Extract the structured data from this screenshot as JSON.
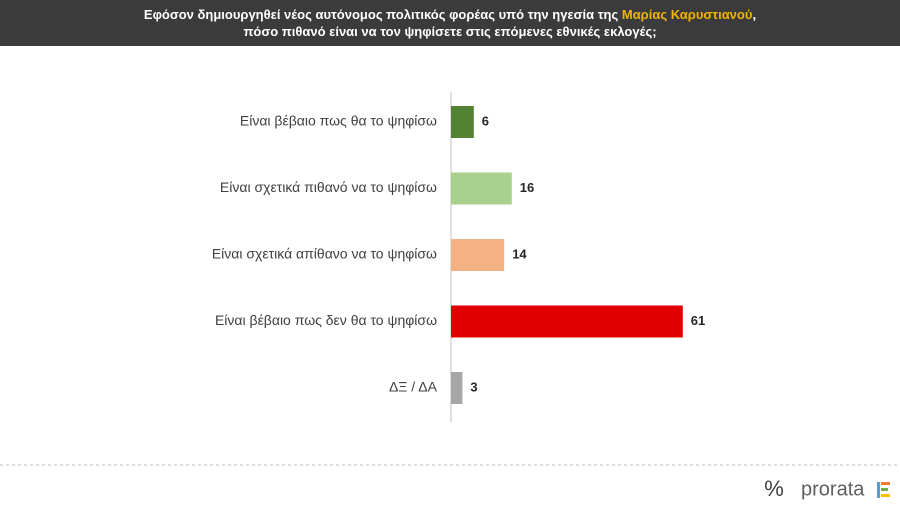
{
  "chart_data": {
    "type": "bar",
    "orientation": "horizontal",
    "title": [
      "Εφόσον δημιουργηθεί νέος αυτόνομος πολιτικός φορέας υπό την ηγεσία της",
      "Μαρίας Καρυστιανού",
      ",",
      "πόσο πιθανό είναι να τον ψηφίσετε στις επόμενες εθνικές εκλογές;"
    ],
    "title_highlight_color": "#f2b400",
    "categories": [
      "Είναι βέβαιο πως θα το ψηφίσω",
      "Είναι σχετικά πιθανό να το ψηφίσω",
      "Είναι σχετικά απίθανο να το ψηφίσω",
      "Είναι βέβαιο πως δεν θα το ψηφίσω",
      "ΔΞ / ΔΑ"
    ],
    "values": [
      6,
      16,
      14,
      61,
      3
    ],
    "colors": [
      "#548235",
      "#a9d18e",
      "#f4b183",
      "#e00000",
      "#a6a6a6"
    ]
  },
  "footer": {
    "logo_symbol": "%",
    "logo_text": "prorata"
  }
}
